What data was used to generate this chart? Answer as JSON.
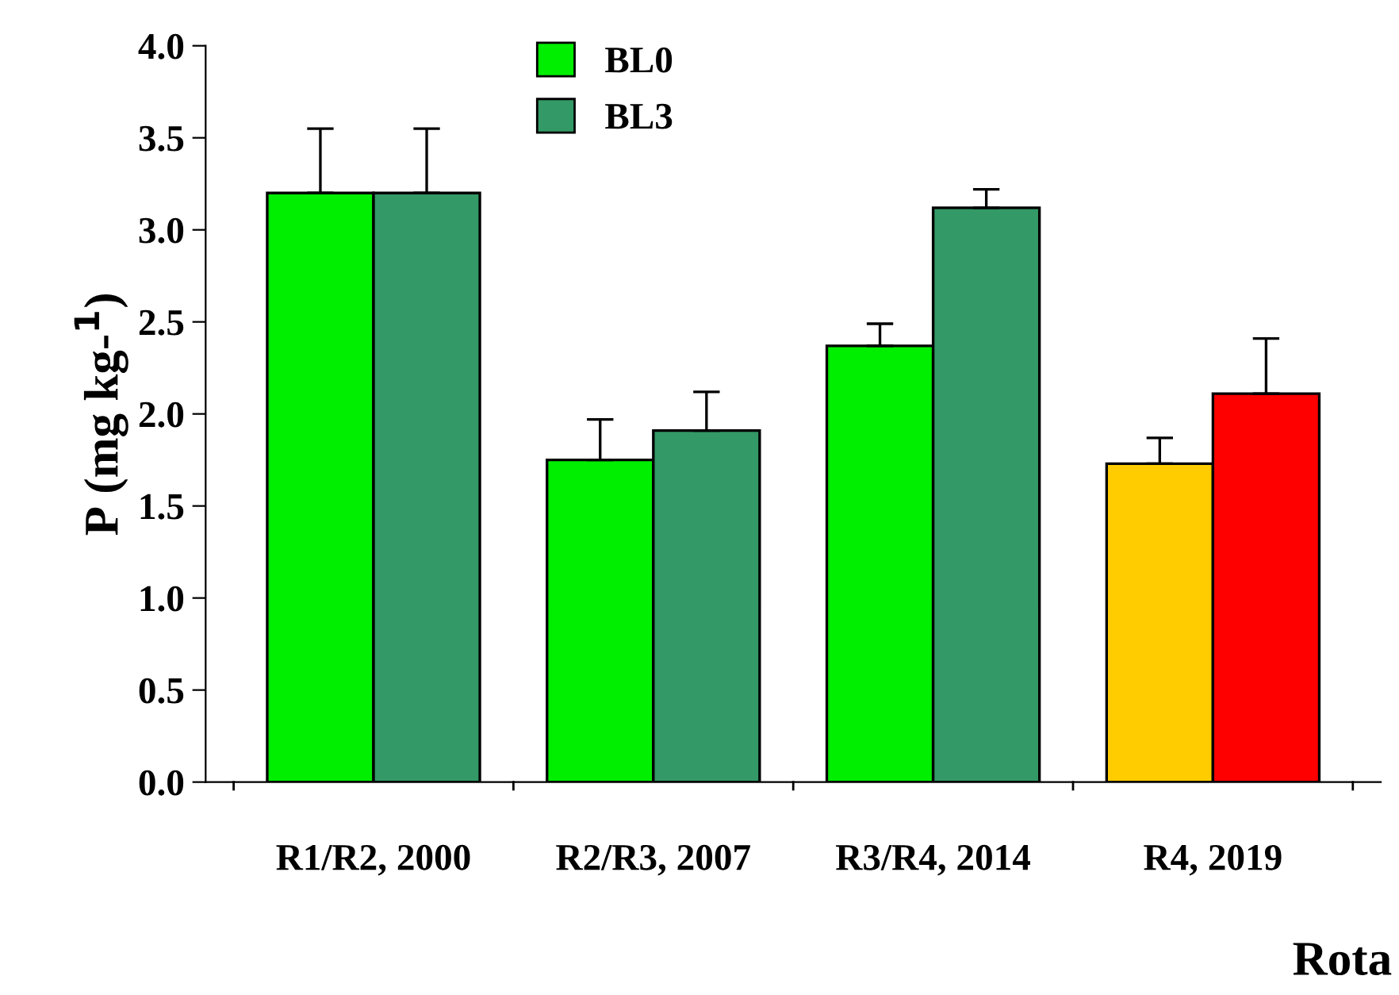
{
  "chart_data": {
    "type": "bar",
    "xlabel": "Rota",
    "ylabel": "P (mg kg-$^{1}$)",
    "categories": [
      "R1/R2, 2000",
      "R2/R3, 2007",
      "R3/R4, 2014",
      "R4, 2019"
    ],
    "series": [
      {
        "name": "BL0",
        "color": "#00ee00",
        "colors": [
          "#00ee00",
          "#00ee00",
          "#00ee00",
          "#ffcc00"
        ],
        "values": [
          3.2,
          1.75,
          2.37,
          1.73
        ],
        "errors": [
          0.35,
          0.22,
          0.12,
          0.14
        ]
      },
      {
        "name": "BL3",
        "color": "#339966",
        "colors": [
          "#339966",
          "#339966",
          "#339966",
          "#ff0000"
        ],
        "values": [
          3.2,
          1.91,
          3.12,
          2.11
        ],
        "errors": [
          0.35,
          0.21,
          0.1,
          0.3
        ]
      }
    ],
    "ylim": [
      0,
      4
    ],
    "yticks": [
      {
        "value": 0,
        "label": "0.0"
      },
      {
        "value": 0.5,
        "label": "0.5"
      },
      {
        "value": 1,
        "label": "1.0"
      },
      {
        "value": 1.5,
        "label": "1.5"
      },
      {
        "value": 2,
        "label": "2.0"
      },
      {
        "value": 2.5,
        "label": "2.5"
      },
      {
        "value": 3,
        "label": "3.0"
      },
      {
        "value": 3.5,
        "label": "3.5"
      },
      {
        "value": 4,
        "label": "4.0"
      }
    ],
    "grid": false,
    "legend": "top"
  }
}
